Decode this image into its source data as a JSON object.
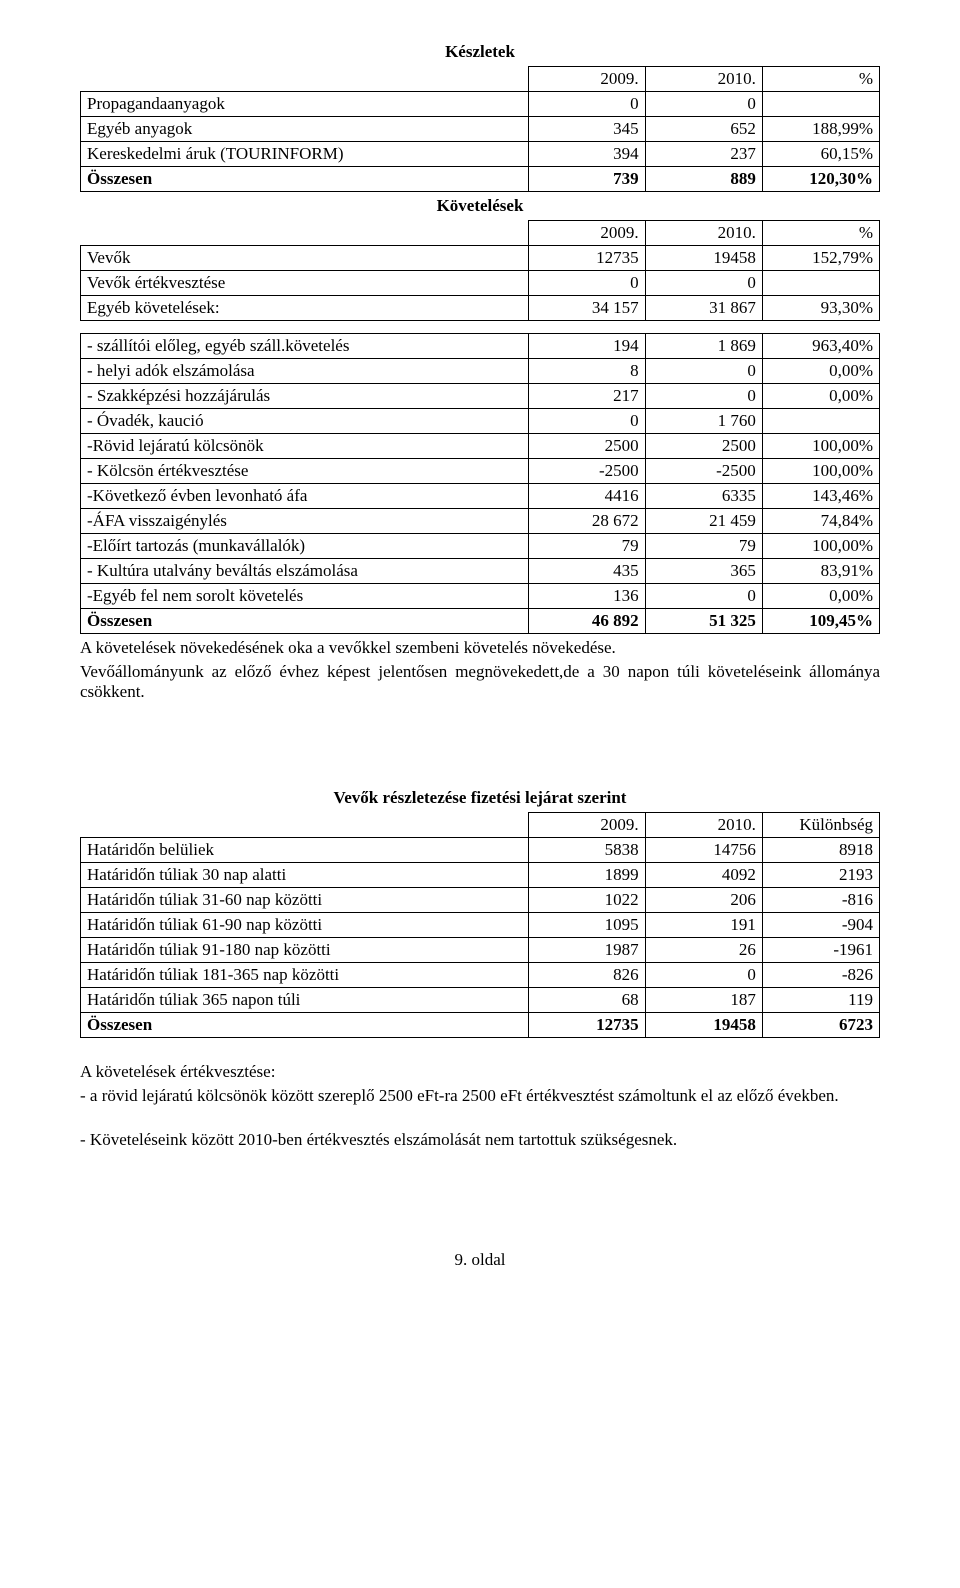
{
  "table1": {
    "title": "Készletek",
    "headers": [
      "",
      "2009.",
      "2010.",
      "%"
    ],
    "rows": [
      [
        "Propagandaanyagok",
        "0",
        "0",
        ""
      ],
      [
        "Egyéb anyagok",
        "345",
        "652",
        "188,99%"
      ],
      [
        "Kereskedelmi áruk (TOURINFORM)",
        "394",
        "237",
        "60,15%"
      ],
      [
        "Összesen",
        "739",
        "889",
        "120,30%"
      ]
    ],
    "bold_rows": [
      3
    ]
  },
  "table2": {
    "title": "Követelések",
    "headers": [
      "",
      "2009.",
      "2010.",
      "%"
    ],
    "rows": [
      [
        "Vevők",
        "12735",
        "19458",
        "152,79%"
      ],
      [
        "Vevők értékvesztése",
        "0",
        "0",
        ""
      ],
      [
        "Egyéb követelések:",
        "34 157",
        "31 867",
        "93,30%"
      ]
    ],
    "bold_rows": []
  },
  "table2b": {
    "rows": [
      [
        " - szállítói előleg, egyéb száll.követelés",
        "194",
        "1 869",
        "963,40%"
      ],
      [
        " - helyi adók elszámolása",
        "8",
        "0",
        "0,00%"
      ],
      [
        " - Szakképzési hozzájárulás",
        "217",
        "0",
        "0,00%"
      ],
      [
        " - Óvadék, kaució",
        "0",
        "1 760",
        ""
      ],
      [
        " -Rövid lejáratú kölcsönök",
        "2500",
        "2500",
        "100,00%"
      ],
      [
        " - Kölcsön értékvesztése",
        "-2500",
        "-2500",
        "100,00%"
      ],
      [
        " -Következő évben levonható áfa",
        "4416",
        "6335",
        "143,46%"
      ],
      [
        " -ÁFA visszaigénylés",
        "28 672",
        "21 459",
        "74,84%"
      ],
      [
        " -Előírt tartozás (munkavállalók)",
        "79",
        "79",
        "100,00%"
      ],
      [
        " - Kultúra utalvány beváltás elszámolása",
        "435",
        "365",
        "83,91%"
      ],
      [
        " -Egyéb fel nem sorolt követelés",
        "136",
        "0",
        "0,00%"
      ],
      [
        "Összesen",
        "46 892",
        "51 325",
        "109,45%"
      ]
    ],
    "bold_rows": [
      11
    ]
  },
  "para1": "A követelések növekedésének  oka a vevőkkel szembeni követelés növekedése.",
  "para2": "Vevőállományunk az előző évhez képest jelentősen megnövekedett,de a 30 napon túli követeléseink állománya csökkent.",
  "table3": {
    "title": "Vevők  részletezése fizetési lejárat szerint",
    "headers": [
      "",
      "2009.",
      "2010.",
      "Különbség"
    ],
    "rows": [
      [
        "Határidőn belüliek",
        "5838",
        "14756",
        "8918"
      ],
      [
        "Határidőn túliak 30 nap alatti",
        "1899",
        "4092",
        "2193"
      ],
      [
        "Határidőn túliak 31-60 nap közötti",
        "1022",
        "206",
        "-816"
      ],
      [
        "Határidőn túliak 61-90 nap közötti",
        "1095",
        "191",
        "-904"
      ],
      [
        "Határidőn túliak 91-180 nap közötti",
        "1987",
        "26",
        "-1961"
      ],
      [
        "Határidőn túliak 181-365 nap közötti",
        "826",
        "0",
        "-826"
      ],
      [
        "Határidőn túliak 365 napon túli",
        "68",
        "187",
        "119"
      ],
      [
        "Összesen",
        "12735",
        "19458",
        "6723"
      ]
    ],
    "bold_rows": [
      7
    ]
  },
  "para3": "A követelések értékvesztése:",
  "para4": "- a rövid lejáratú kölcsönök között szereplő 2500 eFt-ra  2500 eFt értékvesztést számoltunk el az előző években.",
  "para5": "- Követeléseink között 2010-ben értékvesztés elszámolását nem tartottuk szükségesnek.",
  "footer": "9. oldal"
}
